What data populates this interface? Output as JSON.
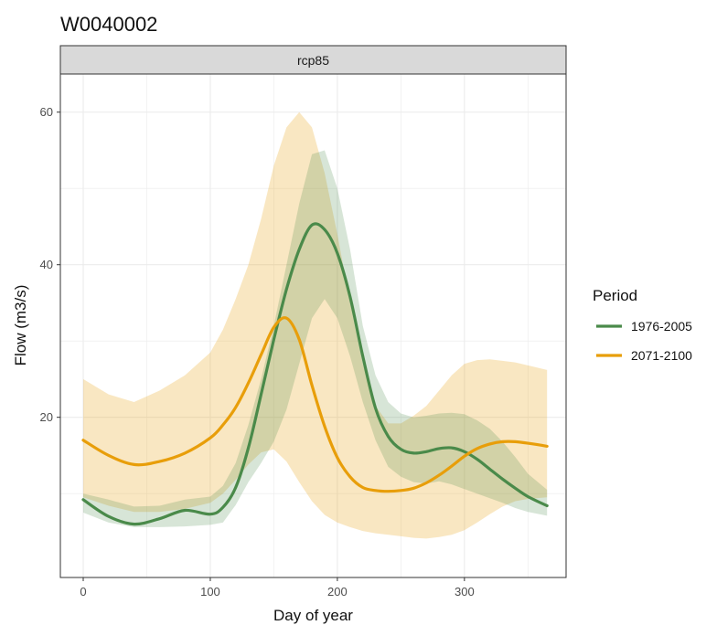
{
  "chart_data": {
    "type": "line",
    "title": "W0040002",
    "facet": "rcp85",
    "xlabel": "Day of year",
    "ylabel": "Flow (m3/s)",
    "xlim": [
      -18,
      380
    ],
    "ylim": [
      -1,
      65
    ],
    "x_ticks": [
      0,
      100,
      200,
      300
    ],
    "y_ticks": [
      20,
      40,
      60
    ],
    "grid": true,
    "legend": {
      "title": "Period",
      "position": "right"
    },
    "colors": {
      "1976-2005": "#4a8a4a",
      "2071-2100": "#e89e0a"
    },
    "series": [
      {
        "name": "1976-2005",
        "color": "#4a8a4a",
        "x": [
          0,
          20,
          40,
          60,
          80,
          100,
          110,
          120,
          130,
          140,
          150,
          160,
          170,
          180,
          190,
          200,
          210,
          220,
          230,
          240,
          250,
          260,
          270,
          280,
          290,
          300,
          310,
          320,
          330,
          340,
          350,
          365
        ],
        "y": [
          9.2,
          7,
          6,
          6.7,
          7.8,
          7.3,
          8.2,
          10.8,
          16,
          23,
          30.2,
          36.8,
          42,
          45.2,
          44.6,
          41.5,
          35.8,
          28,
          21.2,
          17.5,
          15.8,
          15.3,
          15.5,
          15.9,
          16,
          15.5,
          14.5,
          13.2,
          11.9,
          10.7,
          9.6,
          8.4
        ]
      },
      {
        "name": "2071-2100",
        "color": "#e89e0a",
        "x": [
          0,
          20,
          40,
          60,
          80,
          100,
          110,
          120,
          130,
          140,
          150,
          160,
          170,
          180,
          190,
          200,
          210,
          220,
          230,
          240,
          250,
          260,
          270,
          280,
          290,
          300,
          310,
          320,
          330,
          340,
          350,
          365
        ],
        "y": [
          17,
          15,
          13.8,
          14.2,
          15.3,
          17.3,
          19,
          21.3,
          24.5,
          28.2,
          31.8,
          33,
          30.2,
          24.2,
          18.8,
          14.7,
          12.2,
          10.8,
          10.4,
          10.3,
          10.4,
          10.7,
          11.4,
          12.4,
          13.6,
          14.9,
          15.9,
          16.5,
          16.8,
          16.8,
          16.6,
          16.2
        ]
      }
    ],
    "ribbons": [
      {
        "name": "1976-2005",
        "color": "#4a8a4a",
        "x": [
          0,
          20,
          40,
          60,
          80,
          100,
          110,
          120,
          130,
          140,
          150,
          160,
          170,
          180,
          190,
          200,
          210,
          220,
          230,
          240,
          250,
          260,
          270,
          280,
          290,
          300,
          310,
          320,
          330,
          340,
          350,
          365
        ],
        "low": [
          7.5,
          6.2,
          5.6,
          5.6,
          5.7,
          5.9,
          6.2,
          8.5,
          11.5,
          14,
          16.8,
          21,
          27,
          33,
          35.5,
          33,
          28,
          22,
          17,
          13.5,
          12.2,
          11.5,
          11.3,
          11.6,
          11.2,
          10.6,
          10,
          9.4,
          8.8,
          8.1,
          7.6,
          7.1
        ],
        "high": [
          10,
          9.2,
          8.3,
          8.4,
          9.2,
          9.6,
          11,
          14,
          19,
          25,
          32,
          40,
          48,
          54.5,
          55,
          50,
          42,
          32,
          25.5,
          22,
          20.5,
          20,
          20.2,
          20.5,
          20.6,
          20.4,
          19.6,
          18.5,
          16.8,
          14.8,
          12.6,
          10.5
        ]
      },
      {
        "name": "2071-2100",
        "color": "#e89e0a",
        "x": [
          0,
          20,
          40,
          60,
          80,
          100,
          110,
          120,
          130,
          140,
          150,
          160,
          170,
          180,
          190,
          200,
          210,
          220,
          230,
          240,
          250,
          260,
          270,
          280,
          290,
          300,
          310,
          320,
          330,
          340,
          350,
          365
        ],
        "low": [
          9.5,
          8.4,
          7.6,
          7.6,
          8,
          8.8,
          10,
          11.8,
          13.8,
          15.4,
          15.8,
          14.2,
          11.5,
          9,
          7.2,
          6.2,
          5.6,
          5.1,
          4.8,
          4.6,
          4.4,
          4.2,
          4.1,
          4.3,
          4.6,
          5.2,
          6.2,
          7.3,
          8.3,
          9,
          9.3,
          9.5
        ],
        "high": [
          25,
          23,
          22,
          23.5,
          25.5,
          28.5,
          31.5,
          35.5,
          40,
          46,
          53,
          58,
          60,
          58,
          52,
          44,
          35,
          27,
          21.5,
          19.2,
          19.2,
          20.2,
          21.5,
          23.5,
          25.5,
          27,
          27.5,
          27.6,
          27.4,
          27.2,
          26.8,
          26.2
        ]
      }
    ]
  }
}
